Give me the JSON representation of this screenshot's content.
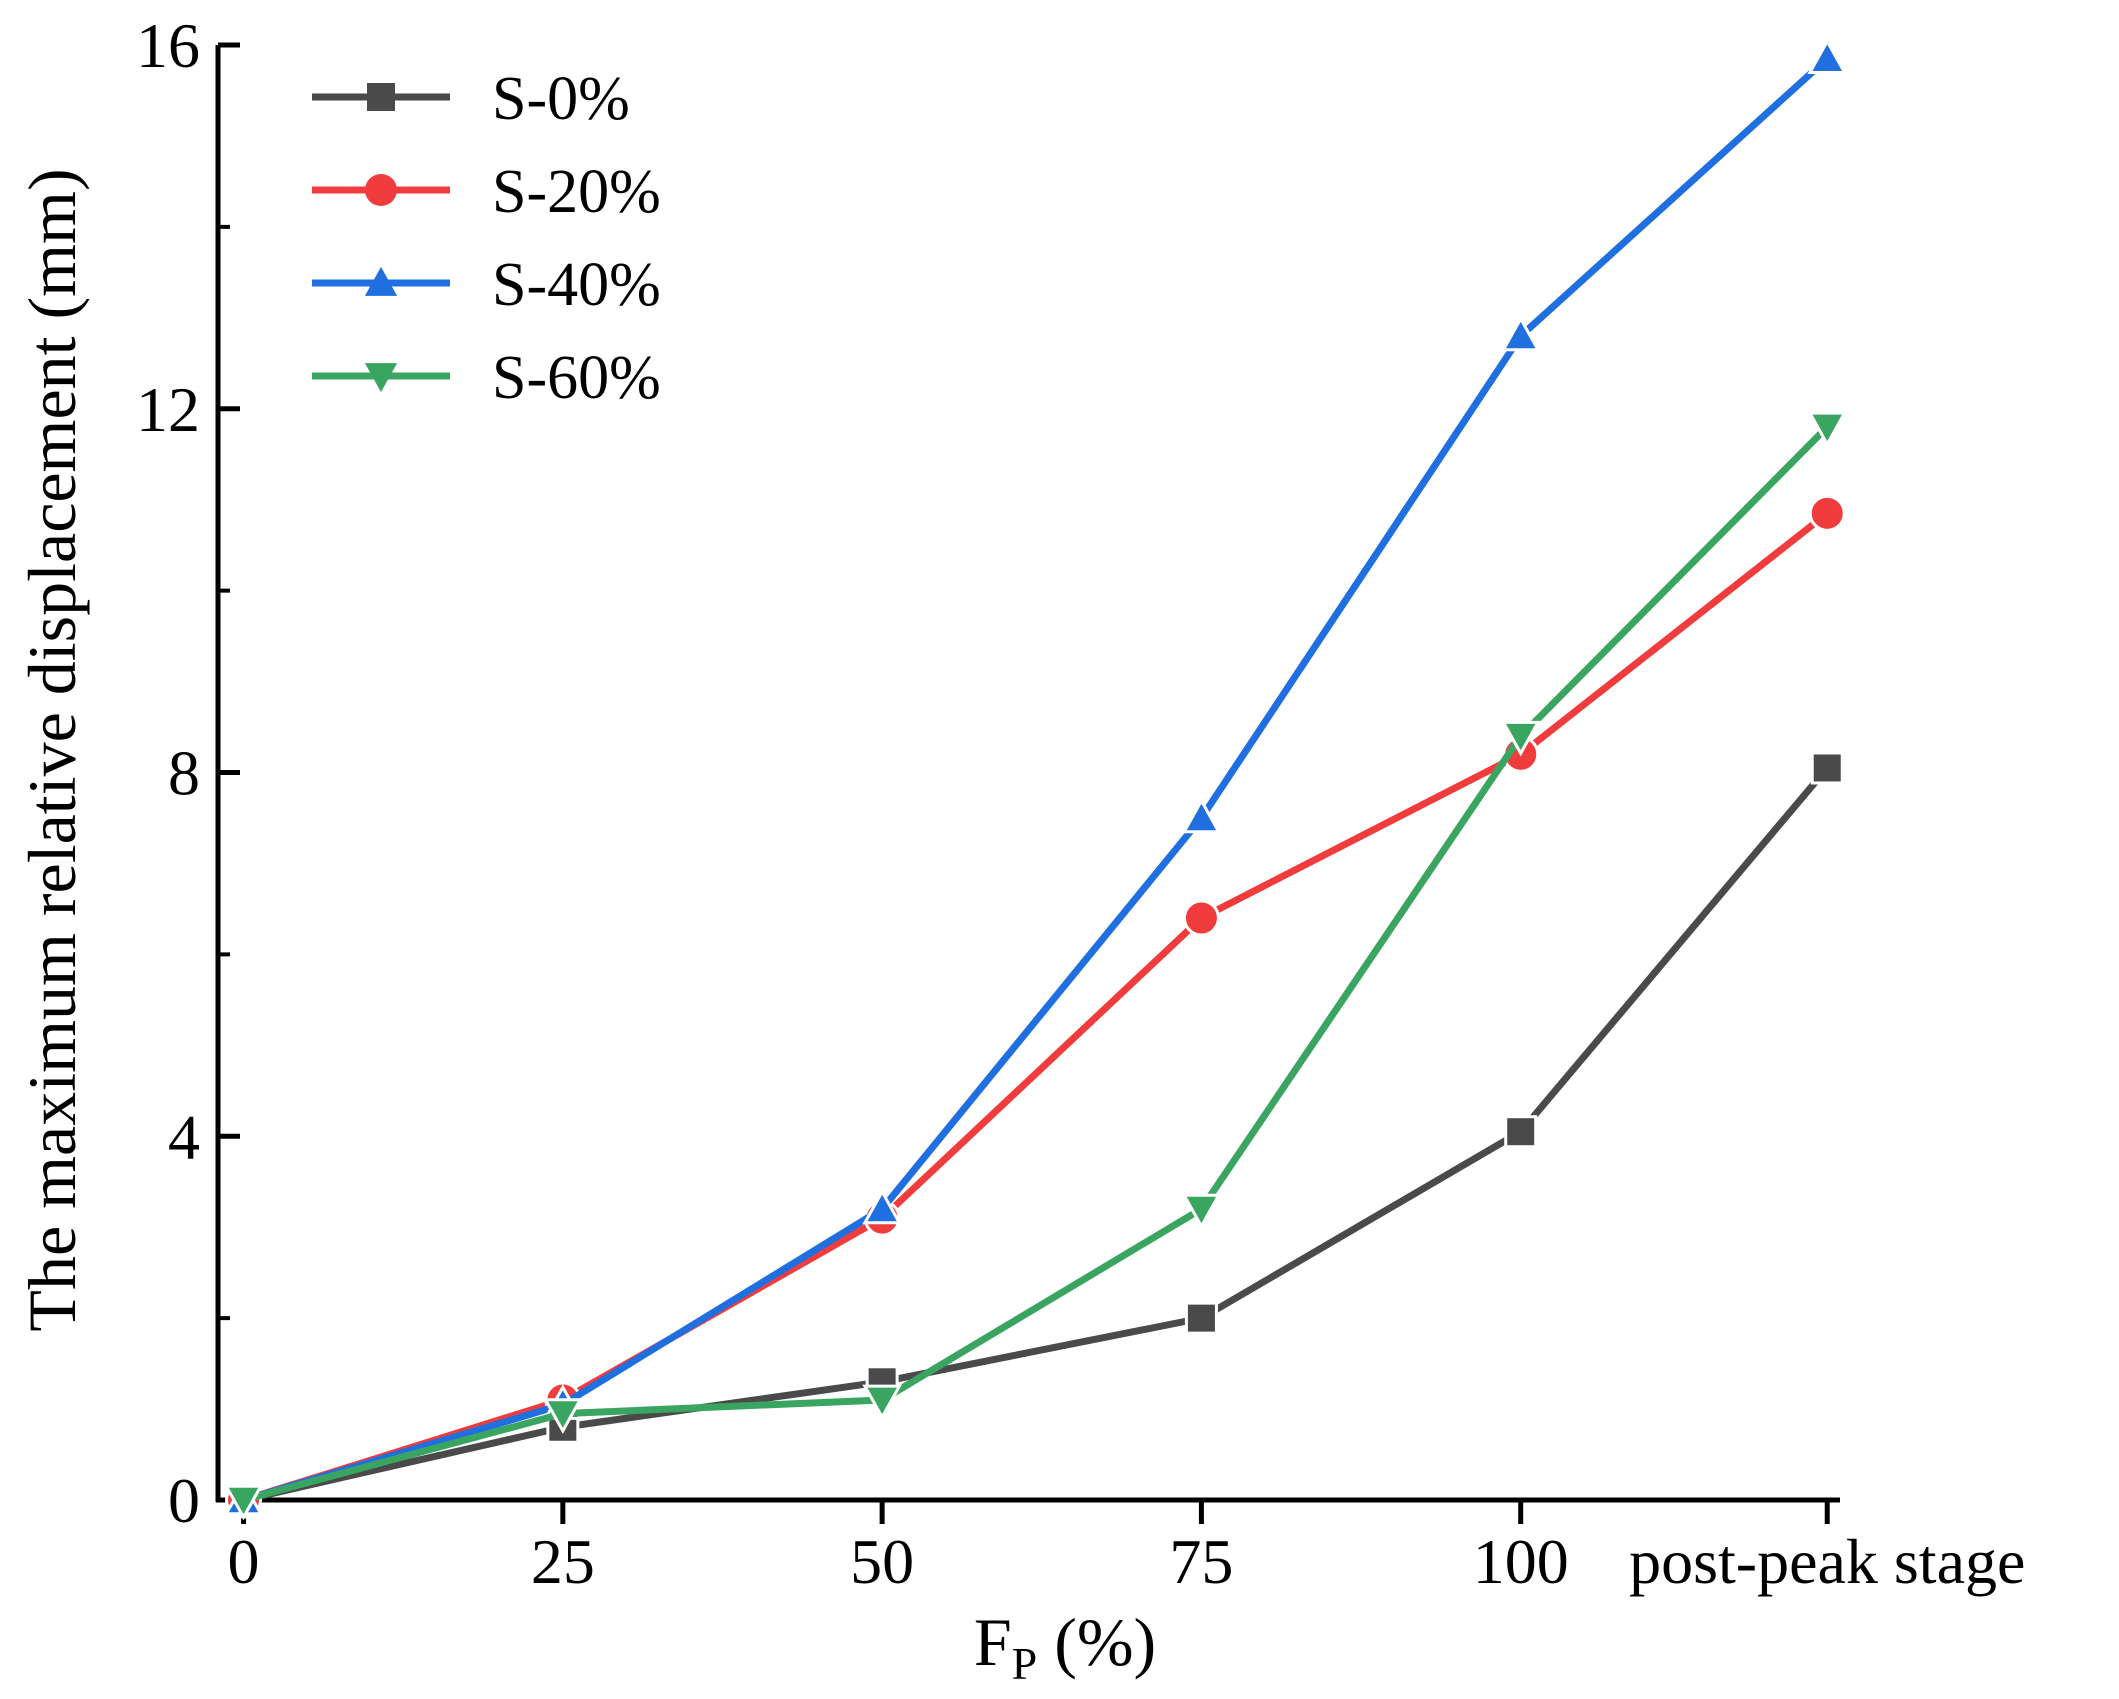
{
  "chart_data": {
    "type": "line",
    "title": "",
    "xlabel": "F",
    "xlabel_subscript": "P",
    "xlabel_suffix": " (%)",
    "ylabel": "The maximum relative displacement (mm)",
    "x": [
      0,
      25,
      50,
      75,
      100,
      124
    ],
    "xtick_labels": [
      "0",
      "25",
      "50",
      "75",
      "100",
      "post-peak stage"
    ],
    "xlim": [
      -2,
      125
    ],
    "ylim": [
      0,
      16
    ],
    "yticks": [
      0,
      4,
      8,
      12,
      16
    ],
    "ytick_labels": [
      "0",
      "4",
      "8",
      "12",
      "16"
    ],
    "grid": false,
    "legend_position": "top-left",
    "series": [
      {
        "name": "S-0%",
        "color": "#4a4a4a",
        "marker": "square",
        "values": [
          0,
          0.8,
          1.3,
          2.0,
          4.05,
          8.05
        ]
      },
      {
        "name": "S-20%",
        "color": "#f03c3c",
        "marker": "circle",
        "values": [
          0,
          1.1,
          3.1,
          6.4,
          8.2,
          10.85
        ]
      },
      {
        "name": "S-40%",
        "color": "#1f6fe0",
        "marker": "triangle-up",
        "values": [
          0,
          1.05,
          3.2,
          7.5,
          12.8,
          15.85
        ]
      },
      {
        "name": "S-60%",
        "color": "#3aa560",
        "marker": "triangle-down",
        "values": [
          0,
          0.95,
          1.1,
          3.2,
          8.4,
          11.8
        ]
      }
    ]
  }
}
